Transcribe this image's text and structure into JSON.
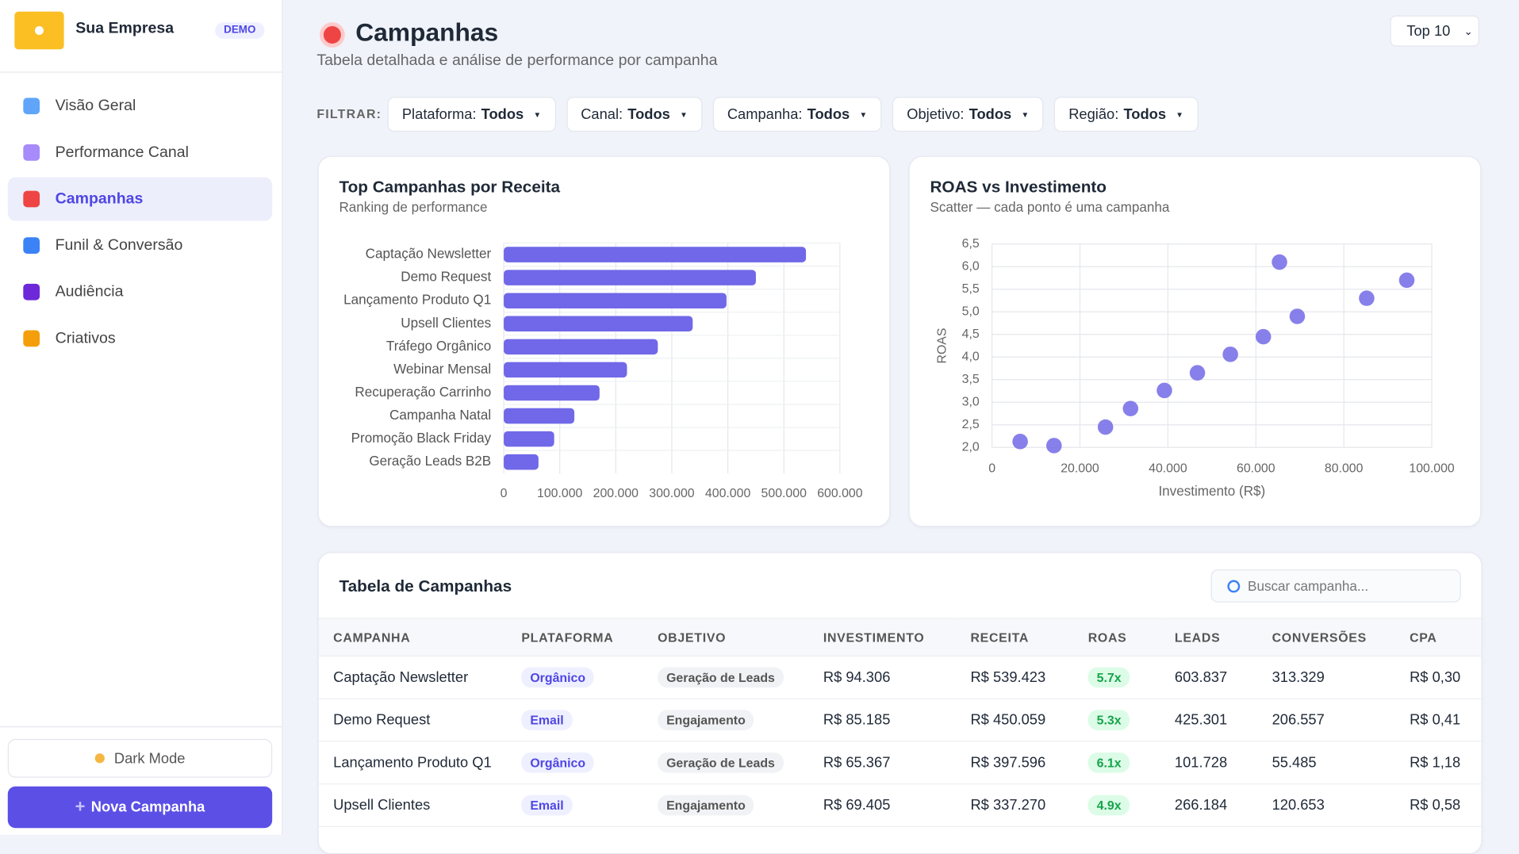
{
  "sidebar": {
    "company": "Sua Empresa",
    "badge": "DEMO",
    "nav": [
      "Visão Geral",
      "Performance Canal",
      "Campanhas",
      "Funil & Conversão",
      "Audiência",
      "Criativos"
    ],
    "dark_mode": "Dark Mode",
    "new_campaign": "Nova Campanha"
  },
  "header": {
    "title": "Campanhas",
    "subtitle": "Tabela detalhada e análise de performance por campanha",
    "top_select": "Top 10"
  },
  "filters": {
    "label": "FILTRAR:",
    "items": [
      {
        "name": "Plataforma:",
        "value": "Todos"
      },
      {
        "name": "Canal:",
        "value": "Todos"
      },
      {
        "name": "Campanha:",
        "value": "Todos"
      },
      {
        "name": "Objetivo:",
        "value": "Todos"
      },
      {
        "name": "Região:",
        "value": "Todos"
      }
    ]
  },
  "chart_data": [
    {
      "type": "bar",
      "orientation": "horizontal",
      "title": "Top Campanhas por Receita",
      "subtitle": "Ranking de performance",
      "categories": [
        "Captação Newsletter",
        "Demo Request",
        "Lançamento Produto Q1",
        "Upsell Clientes",
        "Tráfego Orgânico",
        "Webinar Mensal",
        "Recuperação Carrinho",
        "Campanha Natal",
        "Promoção Black Friday",
        "Geração Leads B2B"
      ],
      "values": [
        539423,
        450059,
        397596,
        337270,
        275000,
        220000,
        171000,
        126000,
        90000,
        62000
      ],
      "color": "#7068e8",
      "xlim": [
        0,
        600000
      ],
      "xticks": [
        0,
        {
          "value": 100000,
          "label": "100.000"
        },
        {
          "value": 200000,
          "label": "200.000"
        },
        {
          "value": 300000,
          "label": "300.000"
        },
        {
          "value": 400000,
          "label": "400.000"
        },
        {
          "value": 500000,
          "label": "500.000"
        },
        {
          "value": 600000,
          "label": "600.000"
        }
      ],
      "grid": true
    },
    {
      "type": "scatter",
      "title": "ROAS vs Investimento",
      "subtitle": "Scatter — cada ponto é uma campanha",
      "x_label": "Investimento (R$)",
      "y_label": "ROAS",
      "color": "#7a72e8",
      "x": [
        6400,
        14100,
        25800,
        31500,
        39200,
        46700,
        54200,
        61700,
        65367,
        69405,
        85185,
        94306
      ],
      "values": [
        2.13,
        2.04,
        2.45,
        2.86,
        3.26,
        3.65,
        4.06,
        4.45,
        6.1,
        4.9,
        5.3,
        5.7
      ],
      "xlim": [
        0,
        100000
      ],
      "ylim": [
        2,
        6.5
      ],
      "xticks": [
        0,
        {
          "value": 20000,
          "label": "20.000"
        },
        {
          "value": 40000,
          "label": "40.000"
        },
        {
          "value": 60000,
          "label": "60.000"
        },
        {
          "value": 80000,
          "label": "80.000"
        },
        {
          "value": 100000,
          "label": "100.000"
        }
      ],
      "yticks": [
        {
          "value": 2,
          "label": "2,0"
        },
        {
          "value": 2.5,
          "label": "2,5"
        },
        {
          "value": 3,
          "label": "3,0"
        },
        {
          "value": 3.5,
          "label": "3,5"
        },
        {
          "value": 4,
          "label": "4,0"
        },
        {
          "value": 4.5,
          "label": "4,5"
        },
        {
          "value": 5,
          "label": "5,0"
        },
        {
          "value": 5.5,
          "label": "5,5"
        },
        {
          "value": 6,
          "label": "6,0"
        },
        {
          "value": 6.5,
          "label": "6,5"
        }
      ],
      "grid": true
    }
  ],
  "table": {
    "title": "Tabela de Campanhas",
    "search_placeholder": "Buscar campanha...",
    "columns": [
      "CAMPANHA",
      "PLATAFORMA",
      "OBJETIVO",
      "INVESTIMENTO",
      "RECEITA",
      "ROAS",
      "LEADS",
      "CONVERSÕES",
      "CPA"
    ],
    "rows": [
      [
        "Captação Newsletter",
        "Orgânico",
        "Geração de Leads",
        "R$ 94.306",
        "R$ 539.423",
        "5.7x",
        "603.837",
        "313.329",
        "R$ 0,30"
      ],
      [
        "Demo Request",
        "Email",
        "Engajamento",
        "R$ 85.185",
        "R$ 450.059",
        "5.3x",
        "425.301",
        "206.557",
        "R$ 0,41"
      ],
      [
        "Lançamento Produto Q1",
        "Orgânico",
        "Geração de Leads",
        "R$ 65.367",
        "R$ 397.596",
        "6.1x",
        "101.728",
        "55.485",
        "R$ 1,18"
      ],
      [
        "Upsell Clientes",
        "Email",
        "Engajamento",
        "R$ 69.405",
        "R$ 337.270",
        "4.9x",
        "266.184",
        "120.653",
        "R$ 0,58"
      ]
    ]
  }
}
